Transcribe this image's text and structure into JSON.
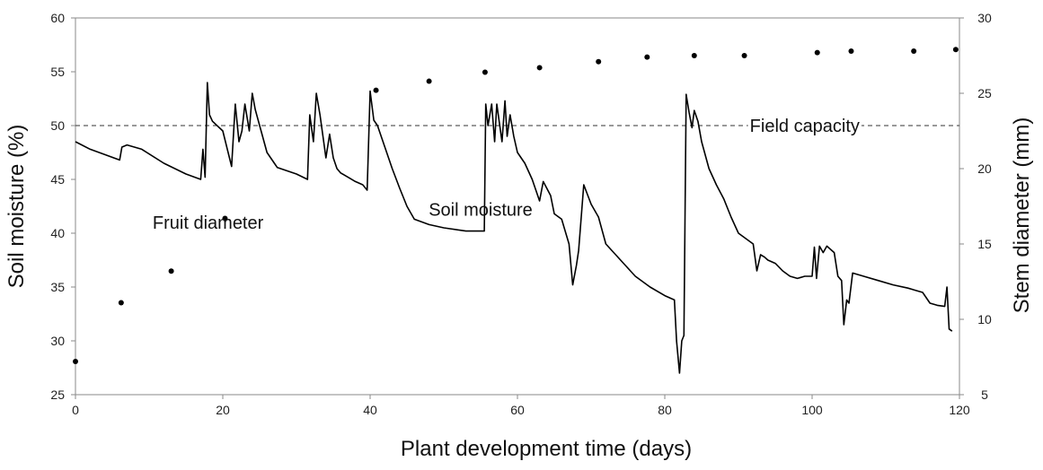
{
  "chart_data": {
    "type": "line",
    "xlabel": "Plant development time (days)",
    "ylabel_left": "Soil moisture (%)",
    "ylabel_right": "Stem diameter (mm)",
    "xlim": [
      0,
      120
    ],
    "ylim_left": [
      25,
      60
    ],
    "ylim_right": [
      5,
      30
    ],
    "x_ticks": [
      "0",
      "20",
      "40",
      "60",
      "80",
      "100",
      "120"
    ],
    "y_left_ticks": [
      "25",
      "30",
      "35",
      "40",
      "45",
      "50",
      "55",
      "60"
    ],
    "y_right_ticks": [
      "5",
      "10",
      "15",
      "20",
      "25",
      "30"
    ],
    "grid": false,
    "legend": "none",
    "reference_line": {
      "label": "Field capacity",
      "y": 50,
      "axis": "left",
      "style": "dashed"
    },
    "annotations": [
      {
        "text": "Fruit diameter",
        "x": 18,
        "y": 41
      },
      {
        "text": "Soil moisture",
        "x": 55,
        "y": 42.2
      },
      {
        "text": "Field capacity",
        "x": 99,
        "y": 50
      }
    ],
    "series": [
      {
        "axis": "left",
        "style": "line",
        "color": "#000000",
        "x": [
          0,
          2,
          4,
          6,
          6.3,
          7,
          9,
          12,
          15,
          17,
          17.3,
          17.6,
          17.9,
          18.2,
          18.6,
          20,
          21.2,
          21.7,
          22.2,
          22.6,
          23,
          23.6,
          24,
          24.4,
          25,
          26,
          27,
          27.4,
          30,
          31.5,
          31.8,
          32.3,
          32.7,
          33.2,
          33.6,
          34,
          34.5,
          35,
          35.5,
          36,
          37,
          38,
          39,
          39.6,
          40,
          40.5,
          41,
          42,
          43,
          44,
          45,
          46,
          48,
          50,
          53,
          55.5,
          55.7,
          56,
          56.5,
          56.9,
          57.2,
          57.6,
          57.9,
          58.3,
          58.6,
          59,
          59.5,
          60,
          61,
          62,
          63,
          63.5,
          64.5,
          65,
          66,
          67,
          67.5,
          68,
          68.3,
          69,
          70,
          71,
          72,
          74,
          76,
          78,
          80,
          81.3,
          81.6,
          82,
          82.3,
          82.6,
          82.9,
          83.3,
          83.7,
          84,
          84.5,
          85,
          86,
          87,
          88,
          89,
          90,
          91,
          92,
          92.5,
          93,
          93.5,
          94,
          95,
          96,
          97,
          98,
          99,
          100,
          100.3,
          100.6,
          101,
          101.5,
          102,
          103,
          103.5,
          104,
          104.3,
          104.7,
          105,
          105.5,
          107,
          109,
          111,
          113,
          115,
          116,
          117,
          118,
          118.3,
          118.6,
          119
        ],
        "y": [
          48.5,
          47.8,
          47.3,
          46.8,
          48,
          48.2,
          47.8,
          46.5,
          45.5,
          45,
          47.8,
          45.2,
          54,
          51,
          50.4,
          49.5,
          46.2,
          52,
          48.5,
          49.5,
          52,
          49.5,
          53,
          51.5,
          50,
          47.5,
          46.5,
          46.1,
          45.5,
          45,
          51,
          48.5,
          53,
          51,
          49,
          47,
          49.2,
          47,
          46,
          45.6,
          45.2,
          44.8,
          44.5,
          44,
          53.2,
          50.5,
          50,
          48,
          46,
          44.2,
          42.5,
          41.3,
          40.8,
          40.5,
          40.2,
          40.2,
          52,
          50,
          52,
          48.5,
          52,
          50,
          48.5,
          52.3,
          49,
          51,
          49,
          47.5,
          46.5,
          45,
          43,
          44.8,
          43.5,
          41.8,
          41.3,
          39,
          35.2,
          37,
          38.4,
          44.5,
          42.7,
          41.5,
          39,
          37.5,
          36,
          35,
          34.2,
          33.8,
          30,
          27,
          30,
          30.5,
          52.9,
          51.2,
          49.8,
          51.4,
          50.4,
          48.5,
          46,
          44.5,
          43.2,
          41.5,
          40,
          39.5,
          39,
          36.5,
          38,
          37.8,
          37.5,
          37.2,
          36.5,
          36,
          35.8,
          36,
          36,
          38.7,
          35.8,
          38.8,
          38.2,
          38.8,
          38.2,
          36,
          35.6,
          31.5,
          33.8,
          33.5,
          36.3,
          36,
          35.6,
          35.2,
          34.9,
          34.5,
          33.5,
          33.3,
          33.2,
          35,
          31.1,
          30.9
        ]
      },
      {
        "axis": "right",
        "style": "scatter",
        "color": "#000000",
        "x": [
          0,
          6.2,
          13,
          20.3,
          40.8,
          48,
          55.6,
          63,
          71,
          77.6,
          84,
          90.8,
          100.7,
          105.3,
          113.8,
          119.5
        ],
        "y": [
          7.2,
          11.1,
          13.2,
          16.7,
          25.2,
          25.8,
          26.4,
          26.7,
          27.1,
          27.4,
          27.5,
          27.5,
          27.7,
          27.8,
          27.8,
          27.9
        ]
      }
    ]
  }
}
